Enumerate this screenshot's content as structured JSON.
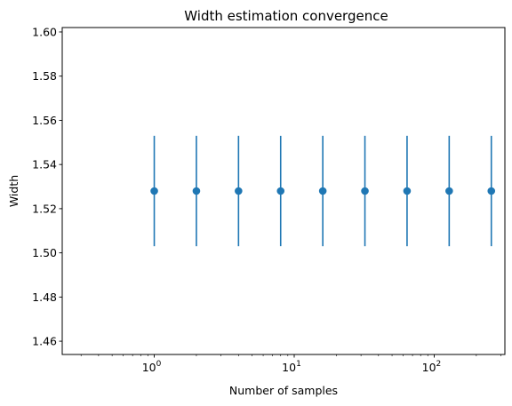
{
  "chart_data": {
    "type": "scatter",
    "title": "Width estimation convergence",
    "xlabel": "Number of samples",
    "ylabel": "Width",
    "xscale": "log",
    "xlim": [
      0.22,
      320
    ],
    "ylim": [
      1.454,
      1.602
    ],
    "x_tick_values": [
      1,
      10,
      100
    ],
    "x_tick_labels": [
      {
        "base": "10",
        "exp": "0"
      },
      {
        "base": "10",
        "exp": "1"
      },
      {
        "base": "10",
        "exp": "2"
      }
    ],
    "y_ticks": [
      "1.46",
      "1.48",
      "1.50",
      "1.52",
      "1.54",
      "1.56",
      "1.58",
      "1.60"
    ],
    "grid": false,
    "series": [
      {
        "color": "#1f77b4",
        "x": [
          1,
          2,
          4,
          8,
          16,
          32,
          64,
          128,
          256
        ],
        "y": [
          1.528,
          1.528,
          1.528,
          1.528,
          1.528,
          1.528,
          1.528,
          1.528,
          1.528
        ],
        "error": [
          0.025,
          0.025,
          0.025,
          0.025,
          0.025,
          0.025,
          0.025,
          0.025,
          0.025
        ]
      }
    ]
  }
}
